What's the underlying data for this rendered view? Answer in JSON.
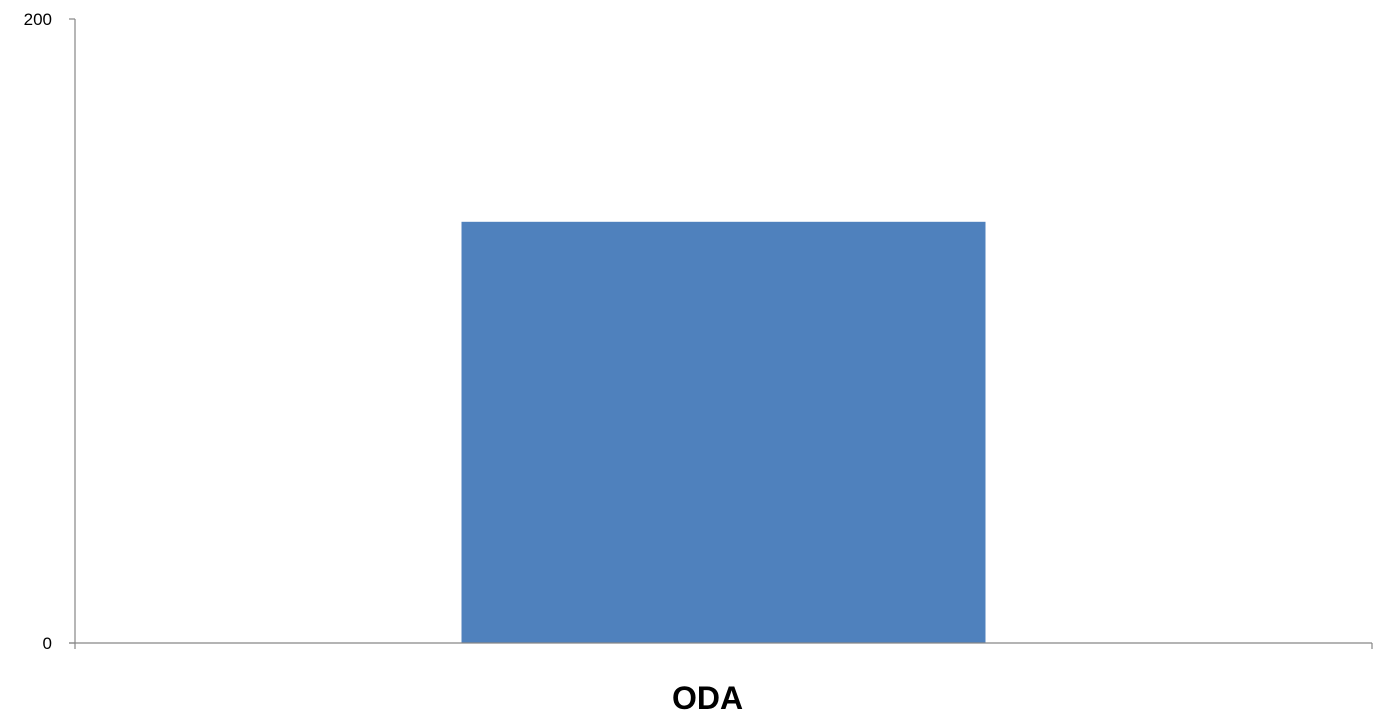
{
  "chart_data": {
    "type": "bar",
    "categories": [
      "ODA"
    ],
    "values": [
      135
    ],
    "ylim": [
      0,
      200
    ],
    "yticks": [
      0,
      200
    ],
    "title": "",
    "xlabel": "",
    "ylabel": "",
    "grid": false,
    "legend": "none",
    "bar_color": "#4f81bd"
  }
}
